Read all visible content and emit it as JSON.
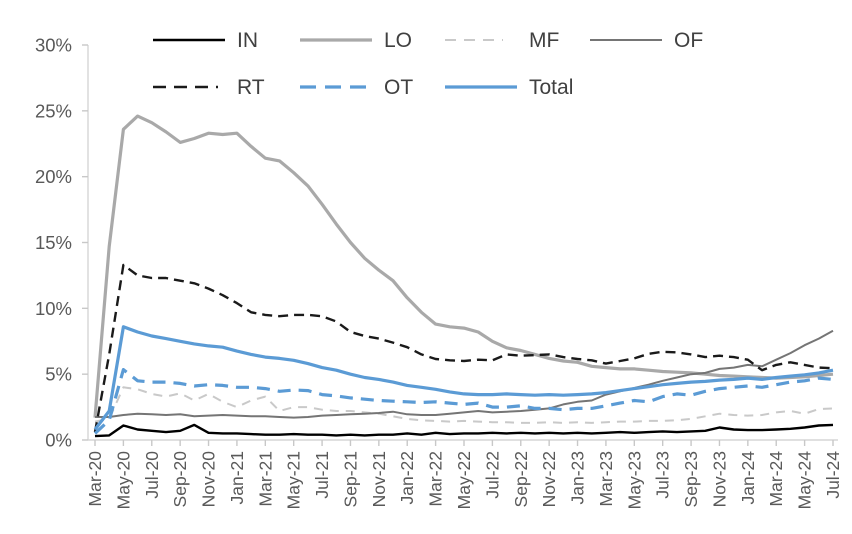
{
  "chart_data": {
    "type": "line",
    "title": "",
    "xlabel": "",
    "ylabel": "",
    "grid": false,
    "legend_position": "top",
    "y_axis": {
      "min": 0,
      "max": 30,
      "step": 5,
      "format": "percent",
      "tick_labels": [
        "0%",
        "5%",
        "10%",
        "15%",
        "20%",
        "25%",
        "30%"
      ]
    },
    "x_categories": [
      "Mar-20",
      "Apr-20",
      "May-20",
      "Jun-20",
      "Jul-20",
      "Aug-20",
      "Sep-20",
      "Oct-20",
      "Nov-20",
      "Dec-20",
      "Jan-21",
      "Feb-21",
      "Mar-21",
      "Apr-21",
      "May-21",
      "Jun-21",
      "Jul-21",
      "Aug-21",
      "Sep-21",
      "Oct-21",
      "Nov-21",
      "Dec-21",
      "Jan-22",
      "Feb-22",
      "Mar-22",
      "Apr-22",
      "May-22",
      "Jun-22",
      "Jul-22",
      "Aug-22",
      "Sep-22",
      "Oct-22",
      "Nov-22",
      "Dec-22",
      "Jan-23",
      "Feb-23",
      "Mar-23",
      "Apr-23",
      "May-23",
      "Jun-23",
      "Jul-23",
      "Aug-23",
      "Sep-23",
      "Oct-23",
      "Nov-23",
      "Dec-23",
      "Jan-24",
      "Feb-24",
      "Mar-24",
      "Apr-24",
      "May-24",
      "Jun-24",
      "Jul-24"
    ],
    "x_tick_labels": [
      "Mar-20",
      "May-20",
      "Jul-20",
      "Sep-20",
      "Nov-20",
      "Jan-21",
      "Mar-21",
      "May-21",
      "Jul-21",
      "Sep-21",
      "Nov-21",
      "Jan-22",
      "Mar-22",
      "May-22",
      "Jul-22",
      "Sep-22",
      "Nov-22",
      "Jan-23",
      "Mar-23",
      "May-23",
      "Jul-23",
      "Sep-23",
      "Nov-23",
      "Jan-24",
      "Mar-24",
      "May-24",
      "Jul-24"
    ],
    "series": [
      {
        "name": "IN",
        "color": "#000000",
        "style": "solid",
        "width": 2.4,
        "values": [
          0.3,
          0.35,
          1.1,
          0.8,
          0.7,
          0.6,
          0.7,
          1.15,
          0.55,
          0.5,
          0.5,
          0.45,
          0.4,
          0.4,
          0.45,
          0.4,
          0.4,
          0.35,
          0.4,
          0.35,
          0.4,
          0.4,
          0.5,
          0.4,
          0.55,
          0.45,
          0.5,
          0.5,
          0.55,
          0.5,
          0.55,
          0.5,
          0.55,
          0.5,
          0.55,
          0.5,
          0.55,
          0.6,
          0.55,
          0.6,
          0.65,
          0.6,
          0.65,
          0.7,
          0.95,
          0.8,
          0.75,
          0.75,
          0.8,
          0.85,
          0.95,
          1.1,
          1.15
        ]
      },
      {
        "name": "LO",
        "color": "#A9A9A9",
        "style": "solid",
        "width": 3.2,
        "values": [
          1.7,
          14.7,
          23.6,
          24.6,
          24.1,
          23.4,
          22.6,
          22.9,
          23.3,
          23.2,
          23.3,
          22.3,
          21.4,
          21.2,
          20.3,
          19.3,
          17.9,
          16.4,
          15.0,
          13.8,
          12.9,
          12.1,
          10.8,
          9.7,
          8.8,
          8.6,
          8.5,
          8.2,
          7.5,
          7.0,
          6.8,
          6.5,
          6.2,
          6.0,
          5.9,
          5.6,
          5.5,
          5.4,
          5.4,
          5.3,
          5.2,
          5.15,
          5.1,
          5.0,
          4.9,
          4.85,
          4.8,
          4.75,
          4.7,
          4.75,
          4.8,
          4.9,
          5.0
        ]
      },
      {
        "name": "MF",
        "color": "#C9C9C9",
        "style": "dashed",
        "width": 2.0,
        "dash": "9 7",
        "legend_dash": "11 8 11 8 11 8 1 300",
        "values": [
          1.4,
          1.6,
          4.0,
          3.85,
          3.5,
          3.3,
          3.55,
          3.0,
          3.5,
          2.9,
          2.5,
          3.0,
          3.3,
          2.2,
          2.5,
          2.5,
          2.3,
          2.2,
          2.2,
          2.1,
          2.0,
          1.8,
          1.6,
          1.5,
          1.45,
          1.4,
          1.45,
          1.4,
          1.35,
          1.35,
          1.3,
          1.3,
          1.35,
          1.3,
          1.35,
          1.3,
          1.35,
          1.4,
          1.4,
          1.45,
          1.45,
          1.5,
          1.6,
          1.8,
          2.0,
          1.9,
          1.85,
          1.9,
          2.1,
          2.2,
          2.0,
          2.35,
          2.4
        ]
      },
      {
        "name": "OF",
        "color": "#757575",
        "style": "solid",
        "width": 2.0,
        "values": [
          1.75,
          1.75,
          1.9,
          2.0,
          1.95,
          1.9,
          1.95,
          1.8,
          1.85,
          1.9,
          1.85,
          1.8,
          1.8,
          1.75,
          1.7,
          1.75,
          1.85,
          1.9,
          1.95,
          2.0,
          2.05,
          2.15,
          1.95,
          1.9,
          1.9,
          2.0,
          2.1,
          2.2,
          2.1,
          2.15,
          2.2,
          2.3,
          2.4,
          2.7,
          2.9,
          3.0,
          3.45,
          3.7,
          3.95,
          4.2,
          4.5,
          4.75,
          5.0,
          5.1,
          5.4,
          5.5,
          5.7,
          5.6,
          6.1,
          6.6,
          7.2,
          7.7,
          8.3
        ]
      },
      {
        "name": "RT",
        "color": "#1A1A1A",
        "style": "dashed",
        "width": 2.4,
        "dash": "10 6",
        "legend_dash": "13 8 13 8 13 8 2 300",
        "values": [
          0.6,
          6.5,
          13.3,
          12.5,
          12.3,
          12.3,
          12.1,
          11.9,
          11.5,
          11.0,
          10.4,
          9.7,
          9.5,
          9.4,
          9.5,
          9.5,
          9.4,
          9.0,
          8.2,
          7.9,
          7.7,
          7.4,
          7.05,
          6.5,
          6.15,
          6.05,
          6.0,
          6.1,
          6.05,
          6.5,
          6.4,
          6.45,
          6.5,
          6.3,
          6.15,
          6.05,
          5.8,
          6.0,
          6.2,
          6.55,
          6.7,
          6.65,
          6.5,
          6.3,
          6.4,
          6.3,
          6.1,
          5.3,
          5.7,
          5.9,
          5.7,
          5.5,
          5.45
        ]
      },
      {
        "name": "OT",
        "color": "#5B9BD5",
        "style": "dashed",
        "width": 3.2,
        "dash": "13 8",
        "legend_dash": "16 9 16 9 16 9 6 300",
        "values": [
          0.5,
          1.5,
          5.35,
          4.5,
          4.4,
          4.4,
          4.3,
          4.1,
          4.2,
          4.15,
          4.0,
          4.0,
          3.9,
          3.7,
          3.8,
          3.75,
          3.45,
          3.35,
          3.2,
          3.1,
          3.0,
          2.95,
          2.9,
          2.85,
          2.9,
          2.8,
          2.7,
          2.8,
          2.5,
          2.5,
          2.6,
          2.4,
          2.4,
          2.3,
          2.4,
          2.4,
          2.6,
          2.8,
          3.0,
          2.9,
          3.3,
          3.5,
          3.4,
          3.7,
          3.9,
          4.0,
          4.1,
          4.0,
          4.2,
          4.4,
          4.5,
          4.7,
          4.6
        ]
      },
      {
        "name": "Total",
        "color": "#5B9BD5",
        "style": "solid",
        "width": 3.2,
        "values": [
          0.8,
          2.2,
          8.6,
          8.2,
          7.9,
          7.7,
          7.5,
          7.3,
          7.15,
          7.05,
          6.75,
          6.5,
          6.3,
          6.2,
          6.05,
          5.8,
          5.5,
          5.3,
          5.0,
          4.75,
          4.6,
          4.4,
          4.15,
          4.0,
          3.85,
          3.65,
          3.5,
          3.45,
          3.45,
          3.5,
          3.45,
          3.4,
          3.45,
          3.4,
          3.45,
          3.5,
          3.6,
          3.75,
          3.9,
          4.05,
          4.2,
          4.3,
          4.4,
          4.45,
          4.55,
          4.6,
          4.7,
          4.6,
          4.75,
          4.85,
          4.95,
          5.1,
          5.3
        ]
      }
    ],
    "legend_rows": [
      [
        "IN",
        "LO",
        "MF",
        "OF"
      ],
      [
        "RT",
        "OT",
        "Total"
      ]
    ]
  },
  "colors": {
    "background": "#FFFFFF",
    "axis_text": "#595959",
    "legend_text": "#404040",
    "axis_line": "#D6D6D6",
    "tick": "#C8C8C8",
    "accent_blue": "#5B9BD5"
  }
}
